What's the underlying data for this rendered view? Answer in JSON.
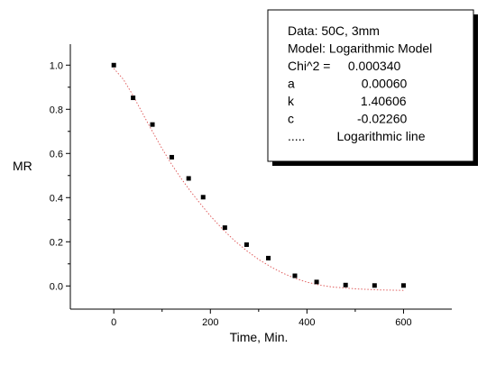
{
  "chart_data": {
    "type": "scatter",
    "xlabel": "Time, Min.",
    "ylabel": "MR",
    "xlim": [
      -90,
      700
    ],
    "ylim": [
      -0.105,
      1.095
    ],
    "x_ticks": [
      0,
      200,
      400,
      600
    ],
    "x_tick_labels": [
      "0",
      "200",
      "400",
      "600"
    ],
    "x_minor_ticks": [
      100,
      300,
      500
    ],
    "y_ticks": [
      0.0,
      0.2,
      0.4,
      0.6,
      0.8,
      1.0
    ],
    "y_tick_labels": [
      "0.0",
      "0.2",
      "0.4",
      "0.6",
      "0.8",
      "1.0"
    ],
    "y_minor_ticks": [
      0.1,
      0.3,
      0.5,
      0.7,
      0.9
    ],
    "grid": false,
    "series": [
      {
        "kind": "points",
        "marker": "square",
        "color": "#000000",
        "x": [
          0,
          40,
          80,
          120,
          155,
          185,
          230,
          275,
          320,
          375,
          420,
          480,
          540,
          600
        ],
        "y": [
          1.0,
          0.852,
          0.731,
          0.583,
          0.487,
          0.402,
          0.264,
          0.187,
          0.126,
          0.046,
          0.018,
          0.004,
          0.002,
          0.002
        ]
      },
      {
        "kind": "fit-line",
        "style": "dotted",
        "color": "#e06060",
        "x": [
          0,
          20,
          40,
          60,
          80,
          100,
          120,
          140,
          160,
          180,
          200,
          225,
          250,
          275,
          300,
          325,
          350,
          375,
          400,
          425,
          450,
          500,
          550,
          600
        ],
        "y": [
          0.985,
          0.935,
          0.862,
          0.78,
          0.7,
          0.622,
          0.55,
          0.485,
          0.425,
          0.37,
          0.317,
          0.258,
          0.205,
          0.16,
          0.12,
          0.087,
          0.058,
          0.035,
          0.017,
          0.005,
          -0.004,
          -0.013,
          -0.018,
          -0.02
        ]
      }
    ],
    "legend": {
      "placement": "top-right",
      "lines": [
        "Data: 50C, 3mm",
        "Model: Logarithmic Model",
        "Chi^2 =     0.000340",
        "a                   0.00060",
        "k                   1.40606",
        "c                  -0.02260",
        ".....         Logarithmic line"
      ]
    }
  }
}
